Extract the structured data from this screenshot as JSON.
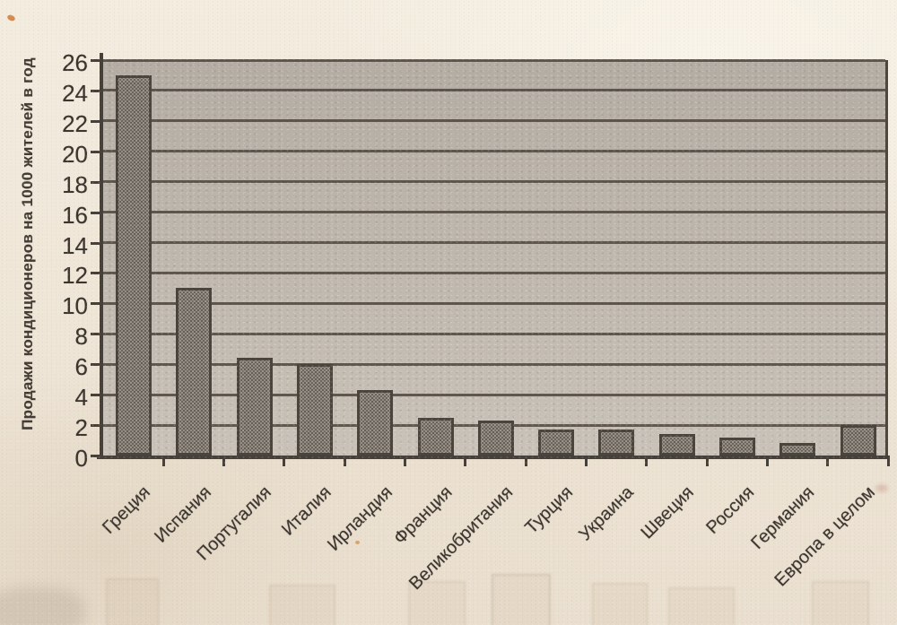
{
  "chart_data": {
    "type": "bar",
    "title": "",
    "ylabel": "Продажи кондиционеров на 1000 жителей в год",
    "xlabel": "",
    "categories": [
      "Греция",
      "Испания",
      "Португалия",
      "Италия",
      "Ирландия",
      "Франция",
      "Великобритания",
      "Турция",
      "Украина",
      "Швеция",
      "Россия",
      "Германия",
      "Европа в целом"
    ],
    "values": [
      25,
      11,
      6.4,
      6,
      4.3,
      2.5,
      2.3,
      1.7,
      1.7,
      1.4,
      1.2,
      0.8,
      2
    ],
    "ylim": [
      0,
      26
    ],
    "ytick_step": 2,
    "grid": "horizontal",
    "legend": "none"
  },
  "colors": {
    "paper": "#eee5d7",
    "plot_fill": "#bfb8af",
    "bar_fill": "#948d85",
    "bar_hatch": "#544e45",
    "axis_line": "#46403a",
    "text": "#3b352e"
  }
}
